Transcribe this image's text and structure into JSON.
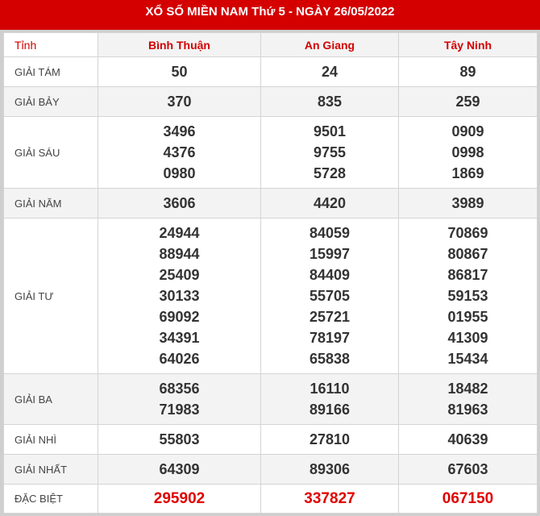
{
  "title": "XỔ SỐ MIỀN NAM Thứ 5 - NGÀY 26/05/2022",
  "header": {
    "label": "Tỉnh",
    "provinces": [
      "Bình Thuận",
      "An Giang",
      "Tây Ninh"
    ]
  },
  "colors": {
    "brand": "#d40000",
    "special": "#e00000"
  },
  "prizes": [
    {
      "label": "GIẢI TÁM",
      "values": [
        [
          "50"
        ],
        [
          "24"
        ],
        [
          "89"
        ]
      ]
    },
    {
      "label": "GIẢI BẢY",
      "values": [
        [
          "370"
        ],
        [
          "835"
        ],
        [
          "259"
        ]
      ]
    },
    {
      "label": "GIẢI SÁU",
      "values": [
        [
          "3496",
          "4376",
          "0980"
        ],
        [
          "9501",
          "9755",
          "5728"
        ],
        [
          "0909",
          "0998",
          "1869"
        ]
      ]
    },
    {
      "label": "GIẢI NĂM",
      "values": [
        [
          "3606"
        ],
        [
          "4420"
        ],
        [
          "3989"
        ]
      ]
    },
    {
      "label": "GIẢI TƯ",
      "values": [
        [
          "24944",
          "88944",
          "25409",
          "30133",
          "69092",
          "34391",
          "64026"
        ],
        [
          "84059",
          "15997",
          "84409",
          "55705",
          "25721",
          "78197",
          "65838"
        ],
        [
          "70869",
          "80867",
          "86817",
          "59153",
          "01955",
          "41309",
          "15434"
        ]
      ]
    },
    {
      "label": "GIẢI BA",
      "values": [
        [
          "68356",
          "71983"
        ],
        [
          "16110",
          "89166"
        ],
        [
          "18482",
          "81963"
        ]
      ]
    },
    {
      "label": "GIẢI NHÌ",
      "values": [
        [
          "55803"
        ],
        [
          "27810"
        ],
        [
          "40639"
        ]
      ]
    },
    {
      "label": "GIẢI NHẤT",
      "values": [
        [
          "64309"
        ],
        [
          "89306"
        ],
        [
          "67603"
        ]
      ]
    },
    {
      "label": "ĐẶC BIỆT",
      "values": [
        [
          "295902"
        ],
        [
          "337827"
        ],
        [
          "067150"
        ]
      ],
      "special": true
    }
  ]
}
